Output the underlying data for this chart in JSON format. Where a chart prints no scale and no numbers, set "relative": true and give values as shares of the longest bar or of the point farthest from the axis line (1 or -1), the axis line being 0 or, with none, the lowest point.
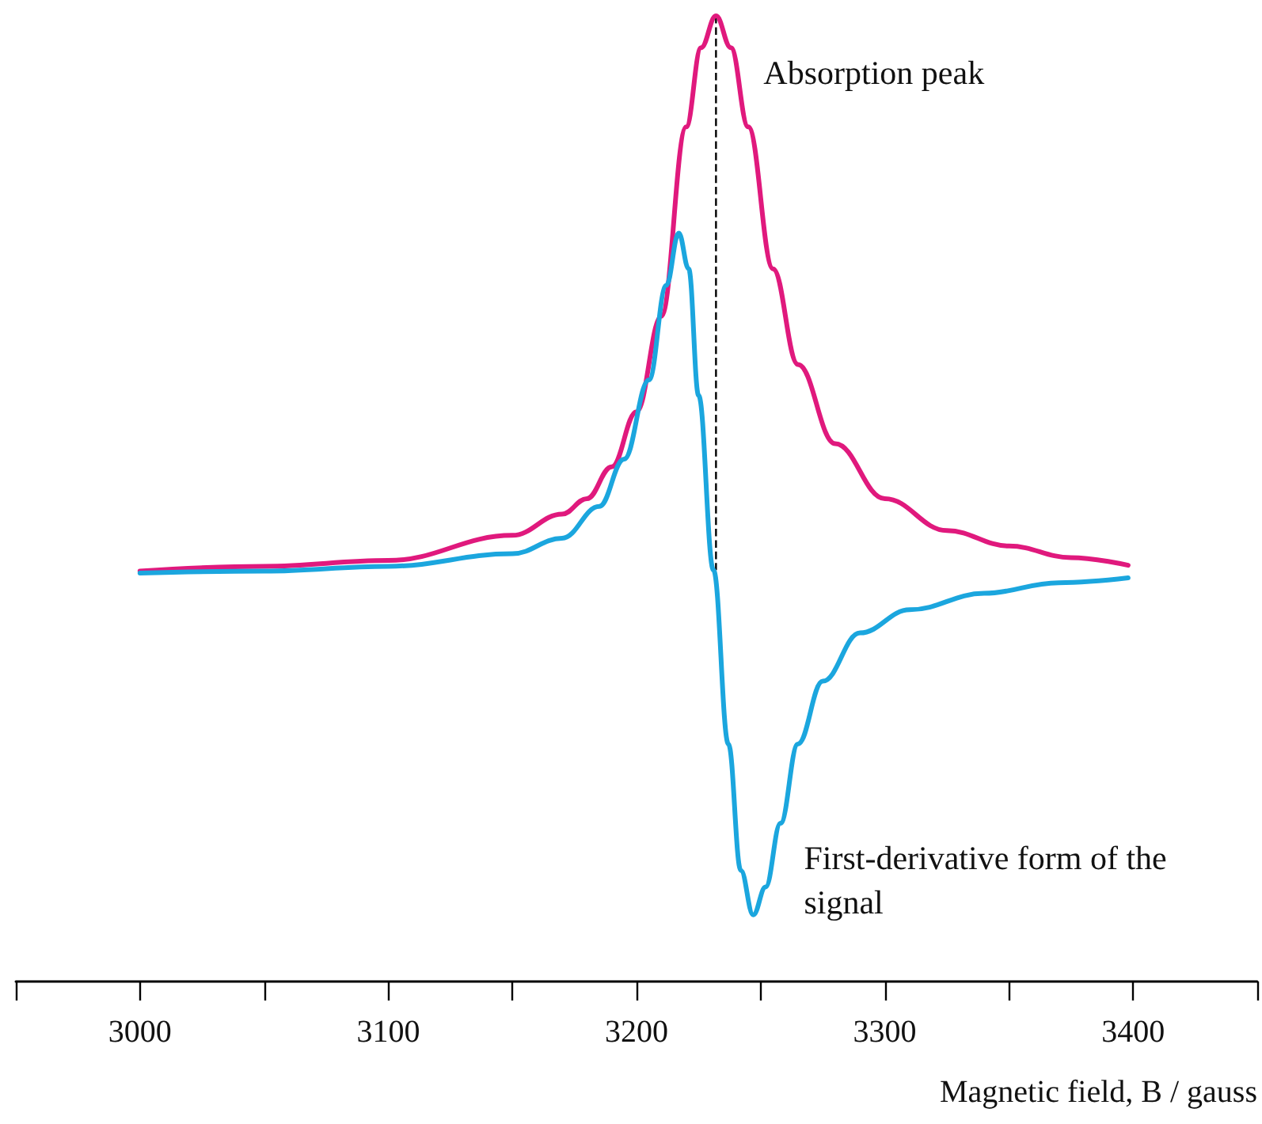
{
  "chart_data": {
    "type": "line",
    "relative": true,
    "xlabel": "Magnetic field, B / gauss",
    "xlim": [
      2950,
      3450
    ],
    "xticks": [
      {
        "value": 2950,
        "label": null
      },
      3000,
      {
        "value": 3050,
        "label": null
      },
      3100,
      {
        "value": 3150,
        "label": null
      },
      3200,
      {
        "value": 3250,
        "label": null
      },
      3300,
      {
        "value": 3350,
        "label": null
      },
      3400,
      {
        "value": 3450,
        "label": null
      }
    ],
    "marker": "none",
    "line_style": "solid",
    "series": [
      {
        "color": "#e0197d",
        "x": [
          3000,
          3050,
          3100,
          3150,
          3170,
          3180,
          3190,
          3200,
          3210,
          3220,
          3226,
          3232,
          3238,
          3245,
          3255,
          3265,
          3280,
          3300,
          3325,
          3350,
          3375,
          3398
        ],
        "values": [
          0.425,
          0.43,
          0.436,
          0.462,
          0.484,
          0.5,
          0.533,
          0.59,
          0.689,
          0.885,
          0.967,
          1,
          0.967,
          0.885,
          0.738,
          0.639,
          0.557,
          0.5,
          0.467,
          0.451,
          0.439,
          0.431
        ]
      },
      {
        "color": "#1ba6de",
        "x": [
          3000,
          3050,
          3100,
          3150,
          3170,
          3185,
          3195,
          3205,
          3212,
          3217,
          3221,
          3225,
          3231,
          3237,
          3242,
          3247,
          3252,
          3258,
          3265,
          3275,
          3290,
          3310,
          3340,
          3370,
          3398
        ],
        "values": [
          0.423,
          0.425,
          0.43,
          0.443,
          0.459,
          0.492,
          0.541,
          0.623,
          0.721,
          0.775,
          0.738,
          0.607,
          0.426,
          0.246,
          0.115,
          0.069,
          0.098,
          0.164,
          0.246,
          0.311,
          0.361,
          0.385,
          0.402,
          0.413,
          0.418
        ]
      }
    ],
    "ref_lines": [
      {
        "axis": "x",
        "value": 3232,
        "line_style": "dashed",
        "color": "#000000"
      }
    ],
    "annotations": [
      {
        "text": "Absorption peak",
        "x": 3232,
        "y": 1
      },
      {
        "text": "First-derivative form of the signal",
        "x": 3247,
        "y": 0.069
      }
    ]
  }
}
